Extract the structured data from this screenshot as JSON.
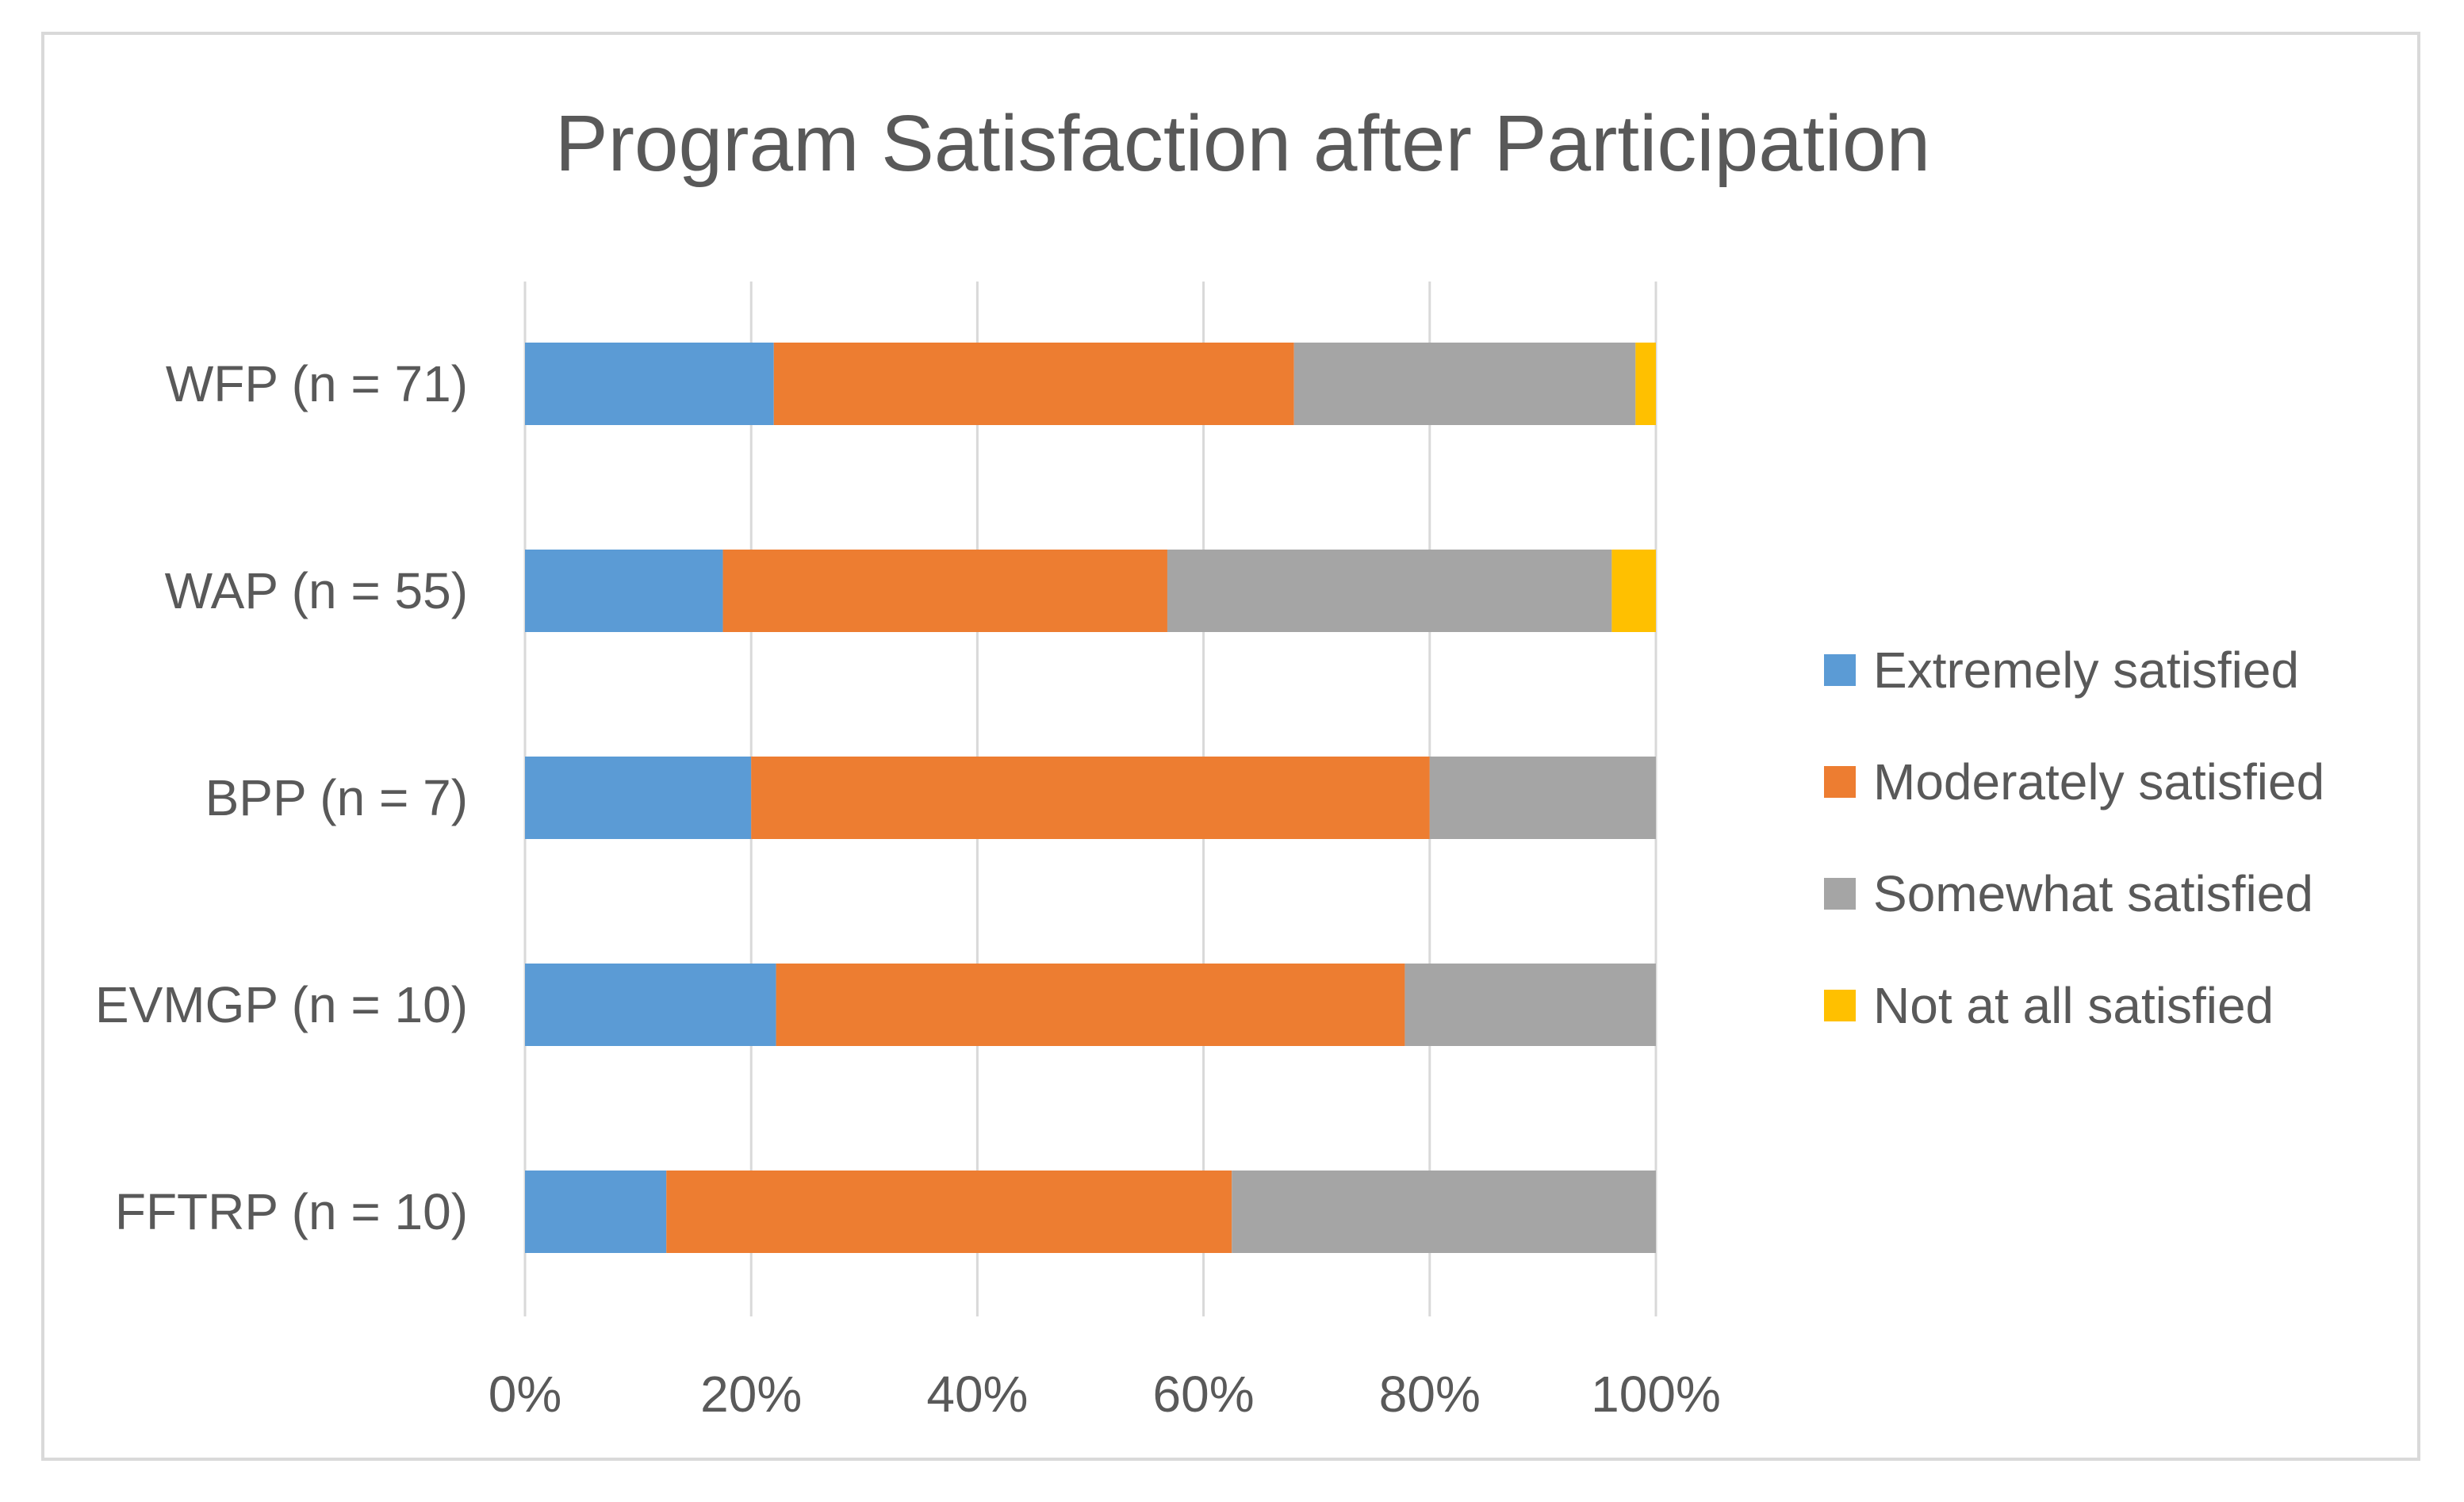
{
  "chart_data": {
    "type": "bar",
    "orientation": "horizontal",
    "stacked": "percent",
    "title": "Program Satisfaction after Participation",
    "categories": [
      "WFP (n = 71)",
      "WAP (n = 55)",
      "BPP (n = 7)",
      "EVMGP (n = 10)",
      "FFTRP (n = 10)"
    ],
    "series": [
      {
        "name": "Extremely satisfied",
        "color": "#5b9bd5",
        "values": [
          22,
          17.5,
          20,
          22.2,
          12.5
        ]
      },
      {
        "name": "Moderately satisfied",
        "color": "#ed7d31",
        "values": [
          46,
          39.3,
          60,
          55.6,
          50
        ]
      },
      {
        "name": "Somewhat satisfied",
        "color": "#a5a5a5",
        "values": [
          30.2,
          39.3,
          20,
          22.2,
          37.5
        ]
      },
      {
        "name": "Not at all satisfied",
        "color": "#ffc000",
        "values": [
          1.8,
          3.9,
          0,
          0,
          0
        ]
      }
    ],
    "xlim": [
      0,
      100
    ],
    "x_ticks": [
      "0%",
      "20%",
      "40%",
      "60%",
      "80%",
      "100%"
    ],
    "grid": true,
    "legend_position": "right"
  }
}
